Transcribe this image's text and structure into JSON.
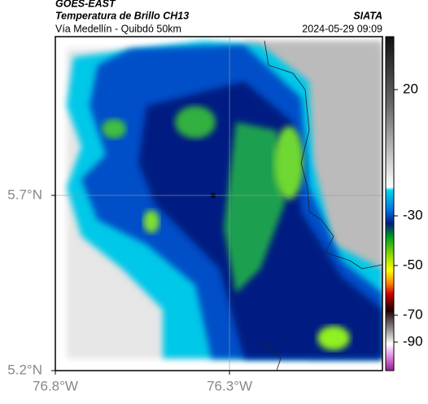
{
  "header": {
    "title": "GOES-EAST",
    "subtitle": "Temperatura de Brillo CH13",
    "location": "Vía Medellín - Quibdó 50km",
    "source": "SIATA",
    "datetime": "2024-05-29 09:09"
  },
  "map": {
    "xlim": [
      -76.8,
      -75.861
    ],
    "ylim": [
      5.2,
      6.153
    ],
    "xticks": [
      {
        "value": -76.8,
        "label": "76.8°W"
      },
      {
        "value": -76.3,
        "label": "76.3°W"
      }
    ],
    "yticks": [
      {
        "value": 5.7,
        "label": "5.7°N"
      },
      {
        "value": 5.2,
        "label": "5.2°N"
      }
    ]
  },
  "colorbar": {
    "ticks": [
      20,
      -30,
      -50,
      -70,
      -90
    ]
  }
}
